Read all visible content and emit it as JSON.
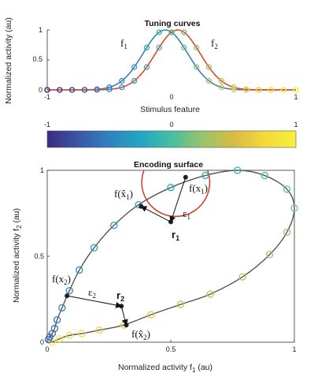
{
  "chart_data": [
    {
      "type": "line",
      "title": "Tuning curves",
      "xlabel": "Stimulus feature",
      "ylabel": "Normalized activity (au)",
      "xlim": [
        -1,
        1
      ],
      "ylim": [
        0,
        1
      ],
      "xticks": [
        "-1",
        "0",
        "1"
      ],
      "yticks": [
        "0",
        "0.5",
        "1"
      ],
      "grid": false,
      "series": [
        {
          "name": "f₁",
          "color": "#3f7fa8",
          "center": -0.05,
          "width": 0.18,
          "x": [
            -1.0,
            -0.9,
            -0.8,
            -0.7,
            -0.6,
            -0.5,
            -0.4,
            -0.3,
            -0.2,
            -0.1,
            0.0,
            0.1,
            0.2,
            0.3,
            0.4,
            0.5,
            0.6,
            0.7,
            0.8,
            0.9,
            1.0
          ],
          "values": [
            0.0,
            0.0,
            0.0,
            0.0,
            0.01,
            0.05,
            0.16,
            0.4,
            0.71,
            0.96,
            0.96,
            0.71,
            0.4,
            0.16,
            0.05,
            0.01,
            0.0,
            0.0,
            0.0,
            0.0,
            0.0
          ]
        },
        {
          "name": "f₂",
          "color": "#d9492e",
          "center": 0.05,
          "width": 0.18,
          "x": [
            -1.0,
            -0.9,
            -0.8,
            -0.7,
            -0.6,
            -0.5,
            -0.4,
            -0.3,
            -0.2,
            -0.1,
            0.0,
            0.1,
            0.2,
            0.3,
            0.4,
            0.5,
            0.6,
            0.7,
            0.8,
            0.9,
            1.0
          ],
          "values": [
            0.0,
            0.0,
            0.0,
            0.0,
            0.0,
            0.01,
            0.03,
            0.09,
            0.27,
            0.56,
            0.86,
            0.99,
            0.86,
            0.56,
            0.27,
            0.09,
            0.03,
            0.01,
            0.0,
            0.0,
            0.0
          ]
        }
      ],
      "marker_x": [
        -1.0,
        -0.9,
        -0.8,
        -0.7,
        -0.6,
        -0.5,
        -0.4,
        -0.3,
        -0.2,
        -0.1,
        0.0,
        0.1,
        0.2,
        0.3,
        0.4,
        0.5,
        0.6,
        0.7,
        0.8,
        0.9,
        1.0
      ],
      "series_labels": [
        "f",
        "1",
        "f",
        "2"
      ]
    },
    {
      "type": "colorbar",
      "ticks": [
        "-1",
        "0",
        "1"
      ],
      "range": [
        -1,
        1
      ],
      "colors": [
        "#3d2a80",
        "#3a56a6",
        "#2f82c0",
        "#22a6c4",
        "#46bfa0",
        "#99c46a",
        "#d7bc45",
        "#f4d93a",
        "#f8f13a"
      ]
    },
    {
      "type": "scatter",
      "title": "Encoding surface",
      "xlabel": "Normalized activity f",
      "xlabel_sub": "1",
      "xlabel_unit": " (au)",
      "ylabel": "Normalized activity f",
      "ylabel_sub": "2",
      "ylabel_unit": " (au)",
      "xlim": [
        0,
        1
      ],
      "ylim": [
        0,
        1
      ],
      "xticks": [
        "0",
        "0.5",
        "1"
      ],
      "yticks": [
        "0",
        "0.5",
        "1"
      ],
      "grid": false,
      "curve_color": "#555555",
      "circle": {
        "center": [
          0.52,
          0.93
        ],
        "radius": 0.25,
        "color": "#d9362a"
      },
      "points": [
        {
          "x": 0.02,
          "y": 0.0
        },
        {
          "x": 0.05,
          "y": 0.02
        },
        {
          "x": 0.09,
          "y": 0.04
        },
        {
          "x": 0.14,
          "y": 0.05
        },
        {
          "x": 0.21,
          "y": 0.07
        },
        {
          "x": 0.31,
          "y": 0.1
        },
        {
          "x": 0.42,
          "y": 0.16
        },
        {
          "x": 0.54,
          "y": 0.22
        },
        {
          "x": 0.66,
          "y": 0.28
        },
        {
          "x": 0.79,
          "y": 0.38
        },
        {
          "x": 0.9,
          "y": 0.51
        },
        {
          "x": 0.97,
          "y": 0.64
        },
        {
          "x": 1.0,
          "y": 0.78
        },
        {
          "x": 0.97,
          "y": 0.89
        },
        {
          "x": 0.88,
          "y": 0.97
        },
        {
          "x": 0.77,
          "y": 1.0
        },
        {
          "x": 0.64,
          "y": 0.97
        },
        {
          "x": 0.5,
          "y": 0.9
        },
        {
          "x": 0.37,
          "y": 0.8
        },
        {
          "x": 0.27,
          "y": 0.68
        },
        {
          "x": 0.19,
          "y": 0.55
        },
        {
          "x": 0.13,
          "y": 0.42
        },
        {
          "x": 0.09,
          "y": 0.3
        },
        {
          "x": 0.06,
          "y": 0.2
        },
        {
          "x": 0.04,
          "y": 0.13
        },
        {
          "x": 0.03,
          "y": 0.08
        },
        {
          "x": 0.02,
          "y": 0.05
        },
        {
          "x": 0.01,
          "y": 0.03
        },
        {
          "x": 0.005,
          "y": 0.015
        }
      ],
      "annotations": {
        "fx1": {
          "point": [
            0.56,
            0.96
          ],
          "label": "f(x",
          "sub": "1",
          "close": ")"
        },
        "fx1hat": {
          "point": [
            0.38,
            0.79
          ],
          "label": "f(x̂",
          "sub": "1",
          "close": ")"
        },
        "r1": {
          "point": [
            0.5,
            0.7
          ],
          "label": "r",
          "sub": "1"
        },
        "eps1": {
          "label": "ε",
          "sub": "1"
        },
        "fx2": {
          "point": [
            0.08,
            0.27
          ],
          "label": "f(x",
          "sub": "2",
          "close": ")"
        },
        "fx2hat": {
          "point": [
            0.32,
            0.1
          ],
          "label": "f(x̂",
          "sub": "2",
          "close": ")"
        },
        "r2": {
          "point": [
            0.3,
            0.21
          ],
          "label": "r",
          "sub": "2"
        },
        "eps2": {
          "label": "ε",
          "sub": "2"
        }
      }
    }
  ]
}
